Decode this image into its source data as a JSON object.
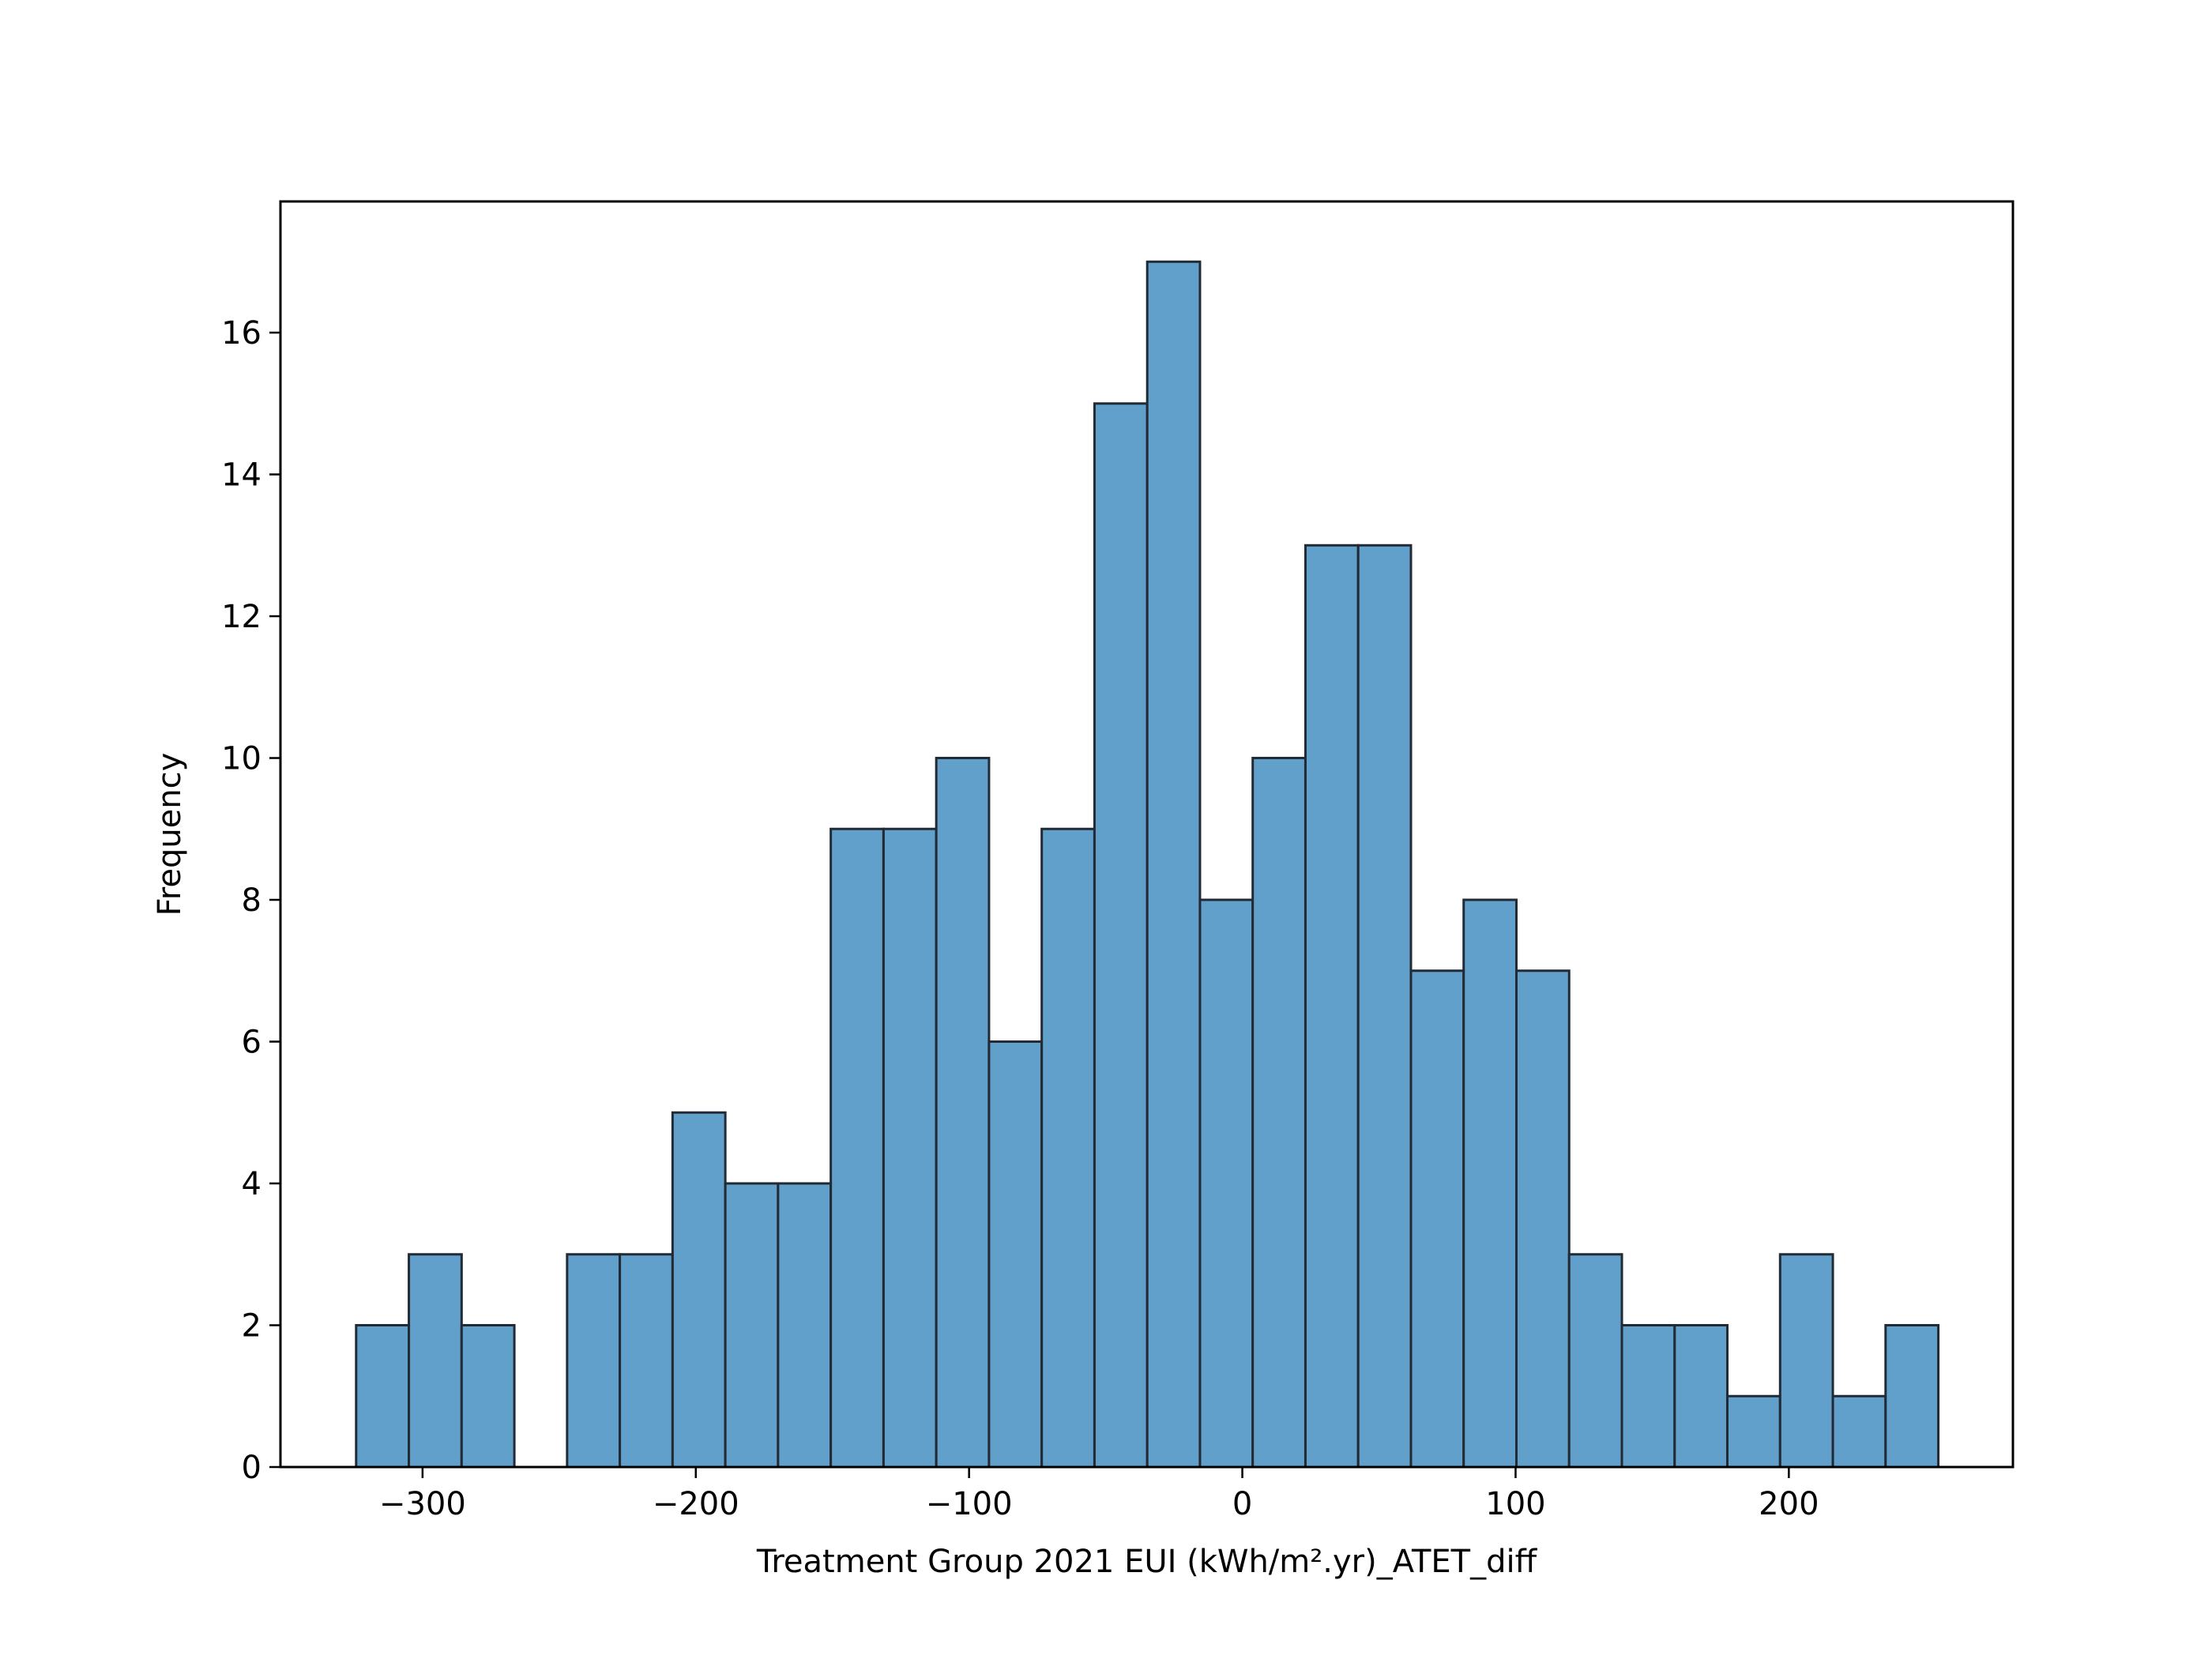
{
  "chart_data": {
    "type": "bar",
    "title": "",
    "xlabel": "Treatment Group 2021 EUI (kWh/m².yr)_ATET_diff",
    "ylabel": "Frequency",
    "xlim": [
      -352,
      282
    ],
    "ylim": [
      0,
      17.85
    ],
    "xticks": [
      -300,
      -200,
      -100,
      0,
      100,
      200
    ],
    "xtick_labels": [
      "−300",
      "−200",
      "−100",
      "0",
      "100",
      "200"
    ],
    "yticks": [
      0,
      2,
      4,
      6,
      8,
      10,
      12,
      14,
      16
    ],
    "ytick_labels": [
      "0",
      "2",
      "4",
      "6",
      "8",
      "10",
      "12",
      "14",
      "16"
    ],
    "bin_start": -324.3,
    "bin_width": 19.3,
    "counts": [
      2,
      3,
      2,
      0,
      3,
      3,
      5,
      4,
      4,
      9,
      9,
      10,
      6,
      9,
      15,
      17,
      8,
      10,
      13,
      13,
      7,
      8,
      7,
      3,
      2,
      2,
      1,
      3,
      1,
      2
    ],
    "grid": false,
    "legend": "none",
    "bar_color": "#62a0cc",
    "edge_color": "#222a33"
  }
}
